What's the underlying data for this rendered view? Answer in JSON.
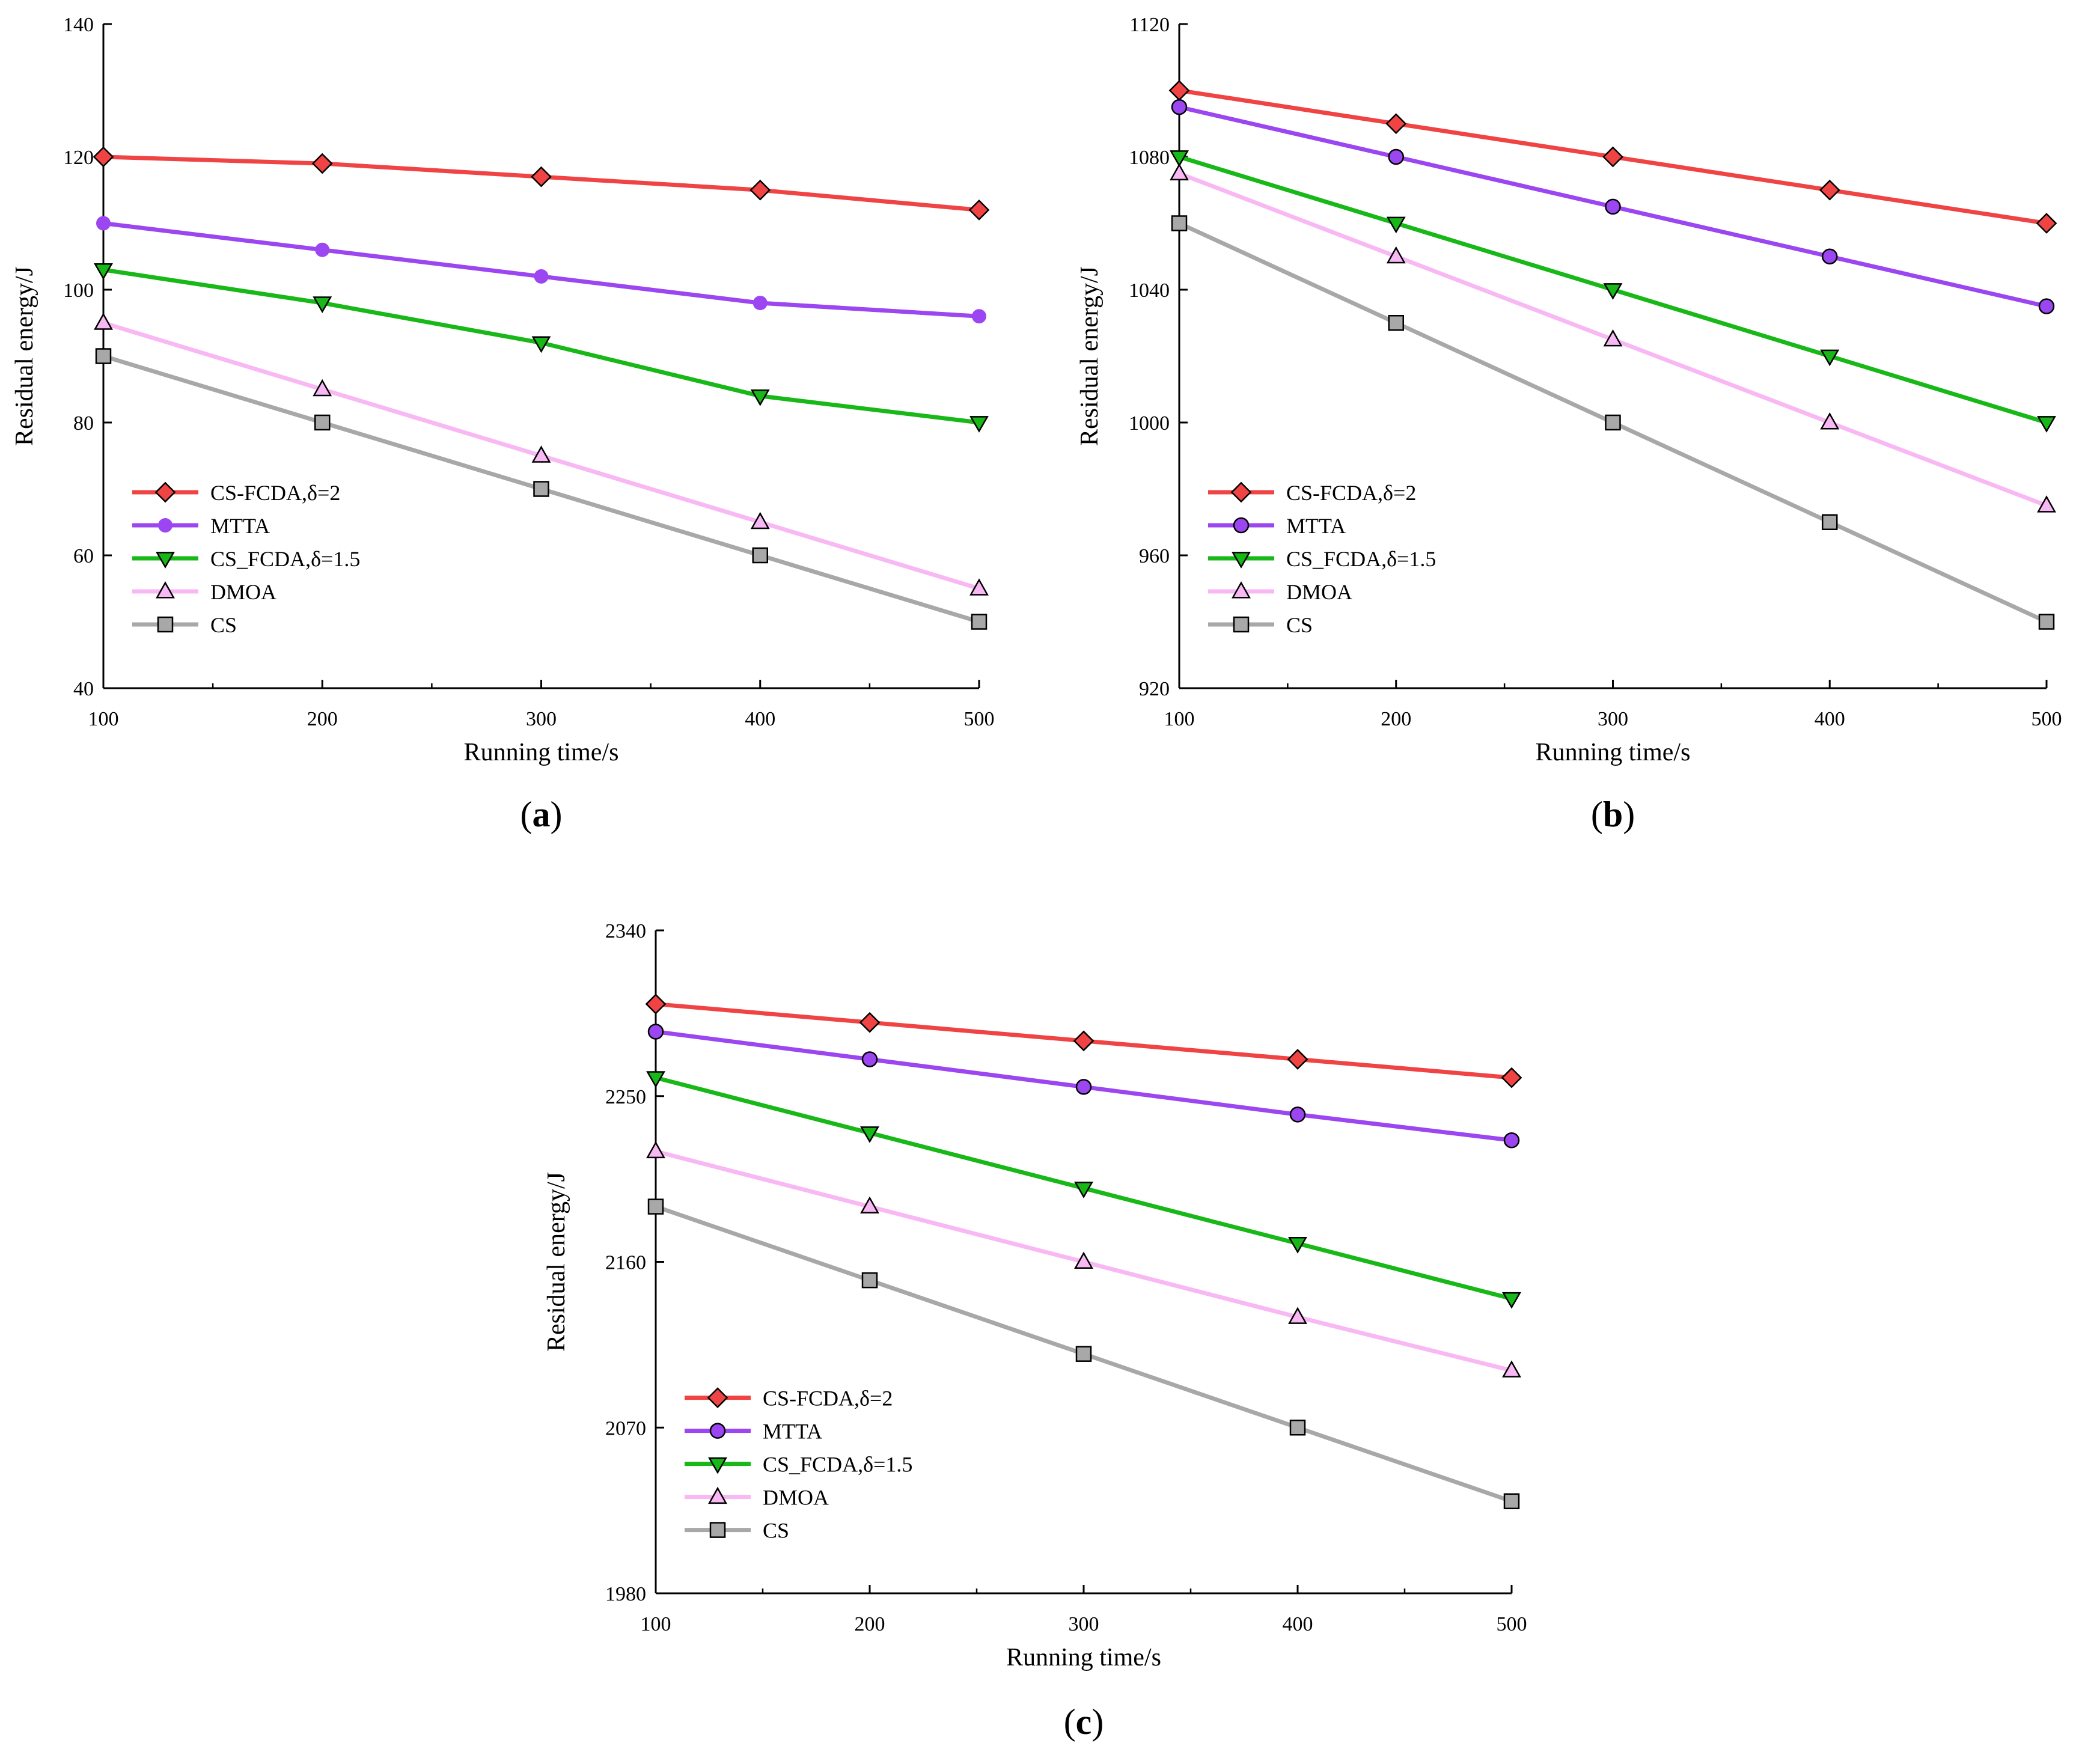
{
  "colors": {
    "CS-FCDA-2": "#f04444",
    "MTTA": "#9b46f0",
    "CS_FCDA-1.5": "#18b818",
    "DMOA": "#f8b8f4",
    "CS": "#a8a8a8"
  },
  "chart_data": [
    {
      "panel": "a",
      "label_letter": "a",
      "type": "line",
      "xlabel": "Running time/s",
      "ylabel": "Residual energy/J",
      "x": [
        100,
        200,
        300,
        400,
        500
      ],
      "xlim": [
        100,
        500
      ],
      "ylim": [
        40,
        140
      ],
      "yticks": [
        40,
        60,
        80,
        100,
        120,
        140
      ],
      "legend_position": "bottom-left",
      "grid": false,
      "series": [
        {
          "name": "CS-FCDA,δ=2",
          "key": "CS-FCDA-2",
          "marker": "diamond",
          "values": [
            120,
            119,
            117,
            115,
            112
          ]
        },
        {
          "name": "MTTA",
          "key": "MTTA",
          "marker": "dot",
          "values": [
            110,
            106,
            102,
            98,
            96
          ]
        },
        {
          "name": "CS_FCDA,δ=1.5",
          "key": "CS_FCDA-1.5",
          "marker": "triangle-down",
          "values": [
            103,
            98,
            92,
            84,
            80
          ]
        },
        {
          "name": "DMOA",
          "key": "DMOA",
          "marker": "triangle-up",
          "values": [
            95,
            85,
            75,
            65,
            55
          ]
        },
        {
          "name": "CS",
          "key": "CS",
          "marker": "square",
          "values": [
            90,
            80,
            70,
            60,
            50
          ]
        }
      ]
    },
    {
      "panel": "b",
      "label_letter": "b",
      "type": "line",
      "xlabel": "Running time/s",
      "ylabel": "Residual energy/J",
      "x": [
        100,
        200,
        300,
        400,
        500
      ],
      "xlim": [
        100,
        500
      ],
      "ylim": [
        920,
        1120
      ],
      "yticks": [
        920,
        960,
        1000,
        1040,
        1080,
        1120
      ],
      "legend_position": "bottom-left",
      "grid": false,
      "series": [
        {
          "name": "CS-FCDA,δ=2",
          "key": "CS-FCDA-2",
          "marker": "diamond",
          "values": [
            1100,
            1090,
            1080,
            1070,
            1060
          ]
        },
        {
          "name": "MTTA",
          "key": "MTTA",
          "marker": "circle",
          "values": [
            1095,
            1080,
            1065,
            1050,
            1035
          ]
        },
        {
          "name": "CS_FCDA,δ=1.5",
          "key": "CS_FCDA-1.5",
          "marker": "triangle-down",
          "values": [
            1080,
            1060,
            1040,
            1020,
            1000
          ]
        },
        {
          "name": "DMOA",
          "key": "DMOA",
          "marker": "triangle-up",
          "values": [
            1075,
            1050,
            1025,
            1000,
            975
          ]
        },
        {
          "name": "CS",
          "key": "CS",
          "marker": "square",
          "values": [
            1060,
            1030,
            1000,
            970,
            940
          ]
        }
      ]
    },
    {
      "panel": "c",
      "label_letter": "c",
      "type": "line",
      "xlabel": "Running time/s",
      "ylabel": "Residual energy/J",
      "x": [
        100,
        200,
        300,
        400,
        500
      ],
      "xlim": [
        100,
        500
      ],
      "ylim": [
        1980,
        2340
      ],
      "yticks": [
        1980,
        2070,
        2160,
        2250,
        2340
      ],
      "legend_position": "bottom-left",
      "grid": false,
      "series": [
        {
          "name": "CS-FCDA,δ=2",
          "key": "CS-FCDA-2",
          "marker": "diamond",
          "values": [
            2300,
            2290,
            2280,
            2270,
            2260
          ]
        },
        {
          "name": "MTTA",
          "key": "MTTA",
          "marker": "circle",
          "values": [
            2285,
            2270,
            2255,
            2240,
            2226
          ]
        },
        {
          "name": "CS_FCDA,δ=1.5",
          "key": "CS_FCDA-1.5",
          "marker": "triangle-down",
          "values": [
            2260,
            2230,
            2200,
            2170,
            2140
          ]
        },
        {
          "name": "DMOA",
          "key": "DMOA",
          "marker": "triangle-up",
          "values": [
            2220,
            2190,
            2160,
            2130,
            2101
          ]
        },
        {
          "name": "CS",
          "key": "CS",
          "marker": "square",
          "values": [
            2190,
            2150,
            2110,
            2070,
            2030
          ]
        }
      ]
    }
  ]
}
